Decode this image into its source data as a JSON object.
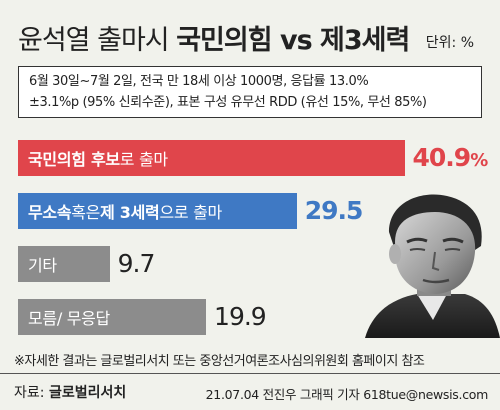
{
  "header": {
    "title_plain": "윤석열 출마시",
    "title_bold": "국민의힘 vs 제3세력",
    "unit": "단위: %"
  },
  "info": {
    "line1": "6월 30일~7월 2일, 전국 만 18세 이상 1000명, 응답률 13.0%",
    "line2": "±3.1%p (95% 신뢰수준), 표본 구성 유무선 RDD (유선 15%, 무선 85%)"
  },
  "chart_data": {
    "type": "bar",
    "orientation": "horizontal",
    "unit": "%",
    "categories": [
      "국민의힘 후보로 출마",
      "무소속 혹은 제 3세력으로 출마",
      "기타",
      "모름/ 무응답"
    ],
    "values": [
      40.9,
      29.5,
      9.7,
      19.9
    ],
    "value_labels": [
      "40.9",
      "29.5",
      "9.7",
      "19.9"
    ],
    "percent_sign": "%",
    "colors": [
      "#e0454b",
      "#3f79c4",
      "#8c8c8c",
      "#8c8c8c"
    ],
    "label_parts": [
      {
        "bold": "국민의힘 후보",
        "rest": "로 출마"
      },
      {
        "bold": "무소속",
        "mid": " 혹은 ",
        "bold2": "제 3세력",
        "rest": "으로 출마"
      },
      {
        "bold": "",
        "rest": "기타"
      },
      {
        "bold": "",
        "rest": "모름/ 무응답"
      }
    ]
  },
  "footer": {
    "note": "※자세한 결과는 글로벌리서치 또는 중앙선거여론조사심의위원회 홈페이지 참조",
    "source_label": "자료:",
    "source_name": "글로벌리서치",
    "credit": "21.07.04 전진우 그래픽 기자 618tue@newsis.com"
  },
  "colors": {
    "background": "#f1f2ec",
    "red": "#e0454b",
    "blue": "#3f79c4",
    "gray": "#8c8c8c"
  },
  "icons": {
    "photo": "politician-photo-icon"
  }
}
